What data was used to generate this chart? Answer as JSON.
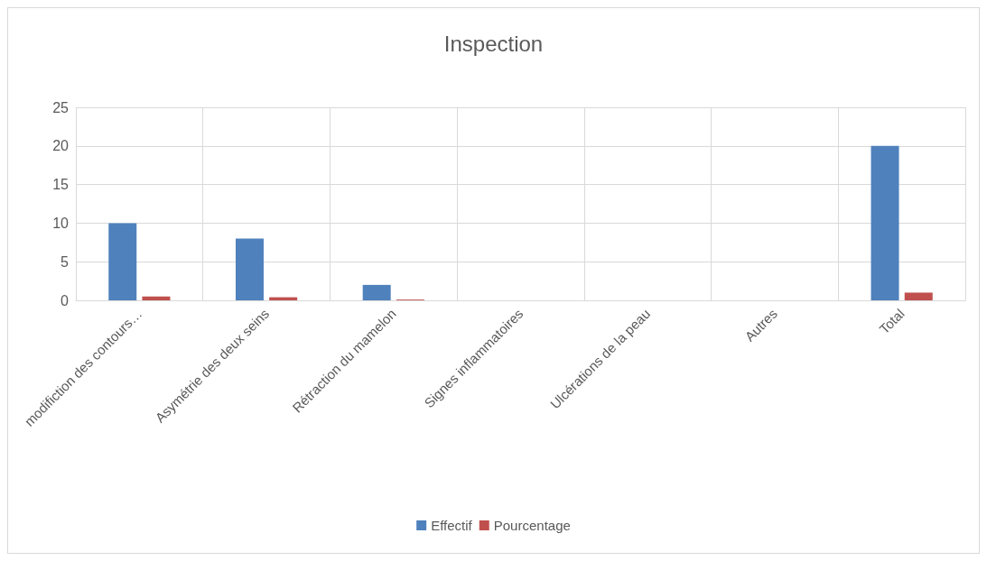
{
  "chart_data": {
    "type": "bar",
    "title": "Inspection",
    "categories": [
      "modifiction des contours…",
      "Asymétrie des deux seins",
      "Rétraction du mamelon",
      "Signes inflammatoires",
      "Ulcérations de la peau",
      "Autres",
      "Total"
    ],
    "series": [
      {
        "name": "Effectif",
        "color": "#4f81bd",
        "values": [
          10,
          8,
          2,
          0,
          0,
          0,
          20
        ]
      },
      {
        "name": "Pourcentage",
        "color": "#c0504d",
        "values": [
          0.5,
          0.4,
          0.1,
          0,
          0,
          0,
          1
        ]
      }
    ],
    "ylim": [
      0,
      25
    ],
    "yticks": [
      0,
      5,
      10,
      15,
      20,
      25
    ],
    "grid": true,
    "legend": "bottom"
  }
}
